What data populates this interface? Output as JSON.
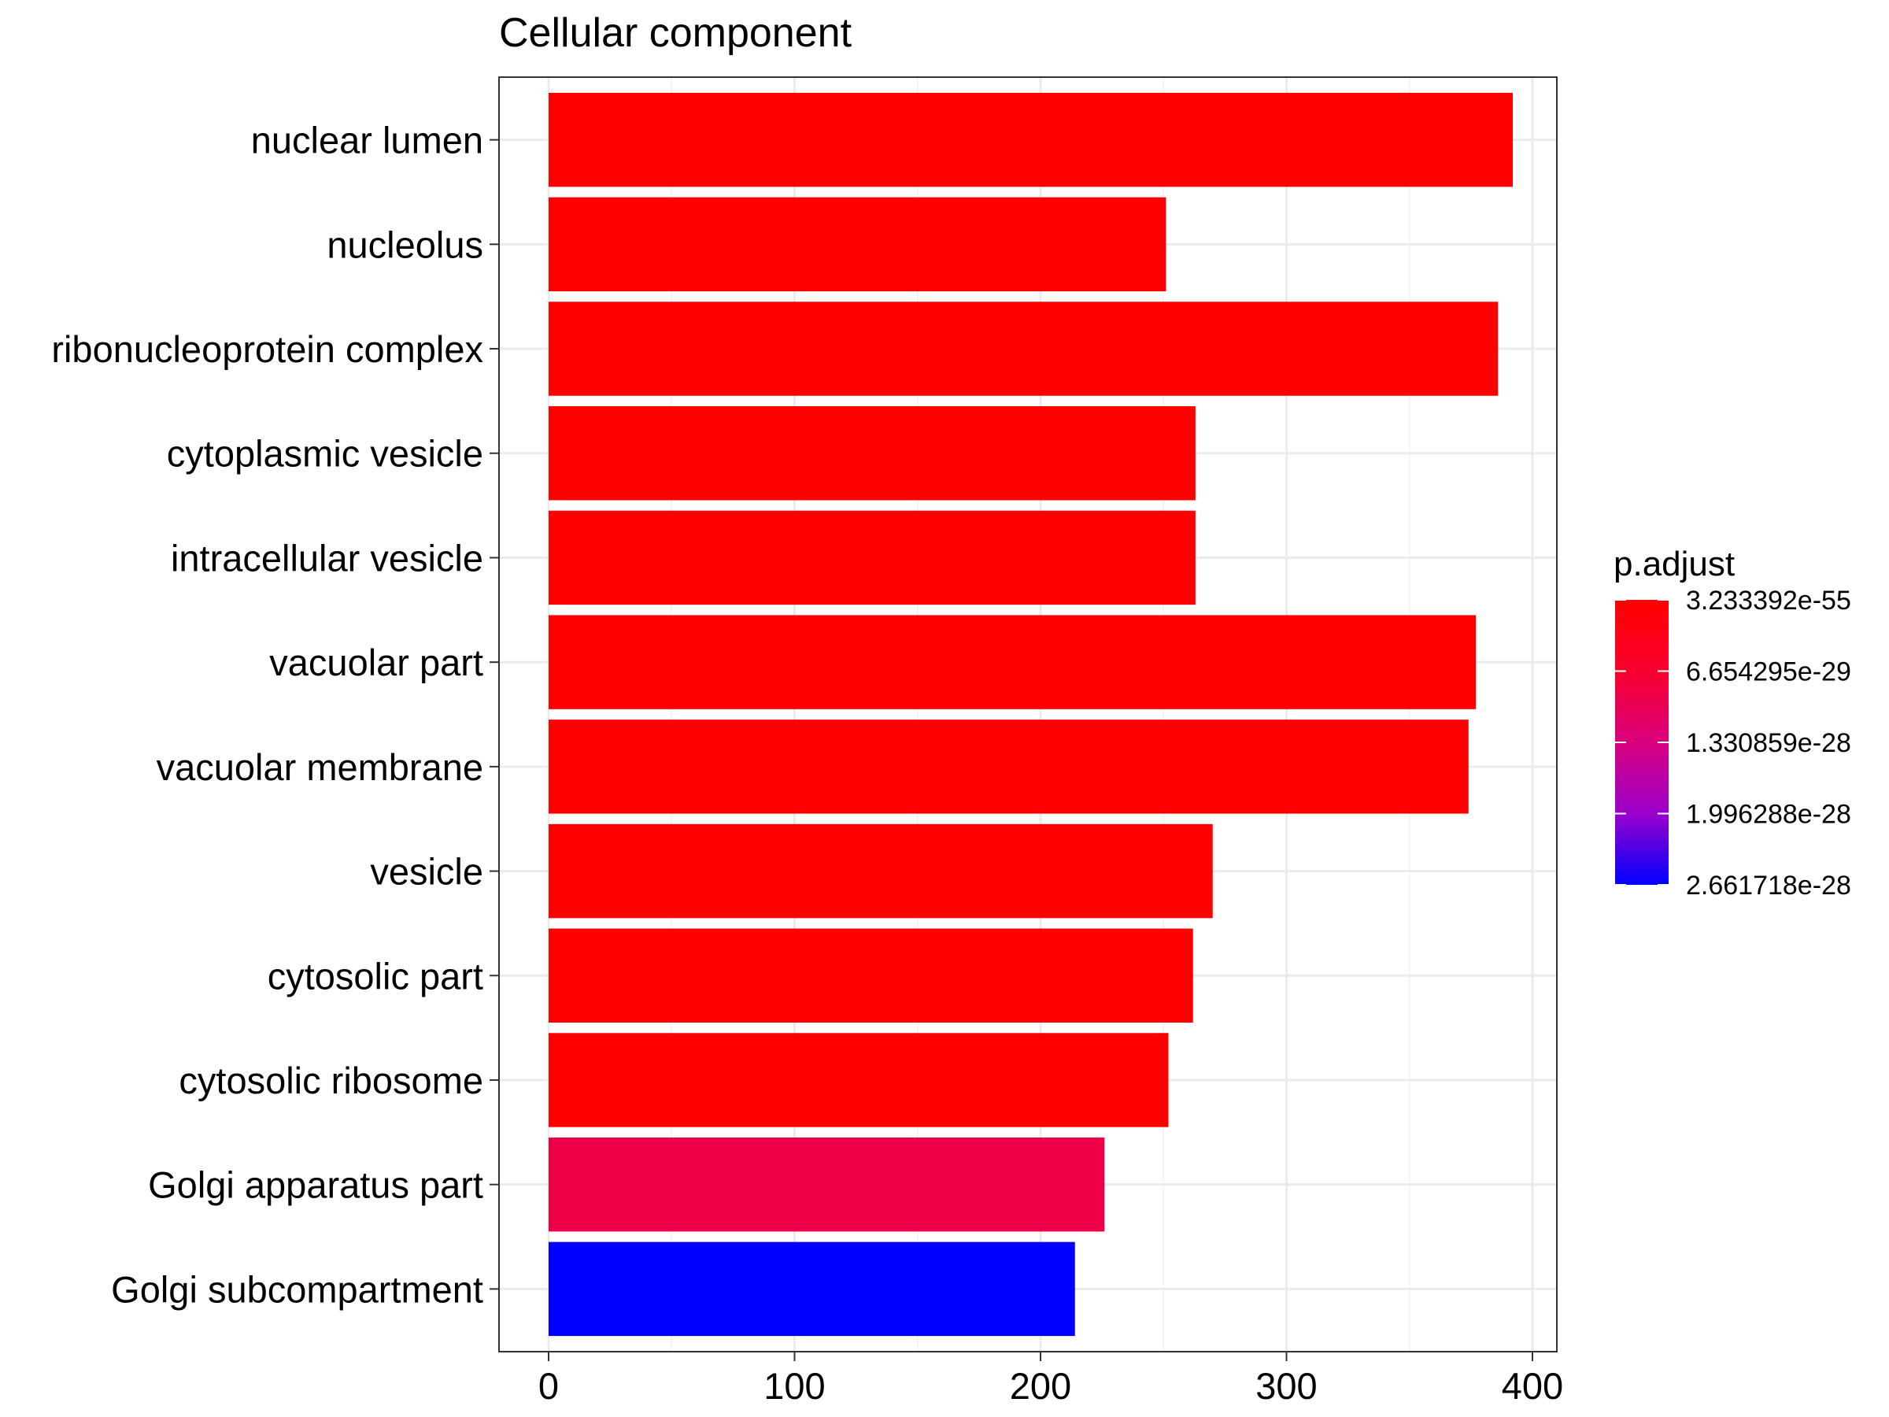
{
  "chart_data": {
    "type": "bar",
    "orientation": "horizontal",
    "title": "Cellular component",
    "xlabel": "",
    "ylabel": "",
    "xlim": [
      0,
      410
    ],
    "x_ticks": [
      0,
      100,
      200,
      300,
      400
    ],
    "grid": true,
    "legend_position": "right",
    "categories": [
      "nuclear lumen",
      "nucleolus",
      "ribonucleoprotein complex",
      "cytoplasmic vesicle",
      "intracellular vesicle",
      "vacuolar part",
      "vacuolar membrane",
      "vesicle",
      "cytosolic part",
      "cytosolic ribosome",
      "Golgi apparatus part",
      "Golgi subcompartment"
    ],
    "values": [
      392,
      251,
      386,
      263,
      263,
      377,
      374,
      270,
      262,
      252,
      226,
      214
    ],
    "p_adjust": [
      3.2e-55,
      1e-50,
      1e-52,
      1e-40,
      1e-40,
      1e-45,
      1e-44,
      1e-38,
      1e-39,
      1e-45,
      4.4e-29,
      2.66e-28
    ],
    "bar_colors": [
      "#FF0000",
      "#FF0000",
      "#FF0000",
      "#FF0000",
      "#FF0000",
      "#FF0000",
      "#FF0000",
      "#FF0000",
      "#FF0000",
      "#FF0000",
      "#EE0047",
      "#0000FF"
    ],
    "legend": {
      "title": "p.adjust",
      "labels": [
        "3.233392e-55",
        "6.654295e-29",
        "1.330859e-28",
        "1.996288e-28",
        "2.661718e-28"
      ],
      "color_low": "#FF0000",
      "color_high": "#0000FF"
    }
  }
}
